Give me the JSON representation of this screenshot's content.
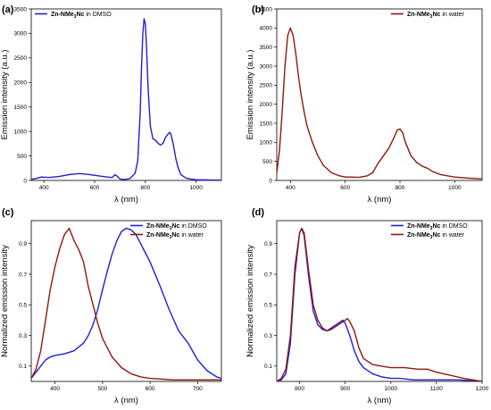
{
  "chart_data": [
    {
      "type": "line",
      "panel": "(a)",
      "xlabel": "λ (nm)",
      "ylabel": "Emission intensity (a.u.)",
      "xlim": [
        350,
        1100
      ],
      "ylim": [
        0,
        3500
      ],
      "xticks": [
        400,
        600,
        800,
        1000
      ],
      "yticks": [
        0,
        500,
        1000,
        1500,
        2000,
        2500,
        3000,
        3500
      ],
      "legend_position": "top-left",
      "series": [
        {
          "name": "Zn-NMe3Nc in DMSO",
          "name_prefix": "Zn-NMe",
          "name_sub": "3",
          "name_suffix": "Nc",
          "name_tail": "in DMSO",
          "color": "#1f1fd6",
          "x": [
            350,
            370,
            390,
            420,
            460,
            500,
            540,
            580,
            620,
            650,
            670,
            680,
            690,
            700,
            720,
            740,
            760,
            770,
            780,
            785,
            790,
            795,
            800,
            805,
            810,
            815,
            820,
            830,
            840,
            850,
            860,
            870,
            880,
            890,
            895,
            900,
            910,
            920,
            930,
            940,
            960,
            980,
            1000,
            1050,
            1100
          ],
          "y": [
            20,
            40,
            70,
            60,
            80,
            120,
            140,
            120,
            90,
            70,
            60,
            120,
            80,
            30,
            20,
            40,
            150,
            400,
            1400,
            2300,
            3000,
            3300,
            3200,
            2700,
            2000,
            1500,
            1100,
            850,
            820,
            760,
            720,
            760,
            880,
            950,
            980,
            960,
            750,
            450,
            250,
            120,
            50,
            25,
            15,
            10,
            5
          ]
        }
      ]
    },
    {
      "type": "line",
      "panel": "(b)",
      "xlabel": "λ (nm)",
      "ylabel": "Emission intensity (a.u.)",
      "xlim": [
        350,
        1100
      ],
      "ylim": [
        0,
        4500
      ],
      "xticks": [
        400,
        600,
        800,
        1000
      ],
      "yticks": [
        0,
        500,
        1000,
        1500,
        2000,
        2500,
        3000,
        3500,
        4000,
        4500
      ],
      "legend_position": "top-right",
      "series": [
        {
          "name": "Zn-NMe3Nc in water",
          "name_prefix": "Zn-NMe",
          "name_sub": "3",
          "name_suffix": "Nc",
          "name_tail": "in water",
          "color": "#8b1a10",
          "x": [
            350,
            360,
            370,
            380,
            390,
            400,
            410,
            420,
            430,
            440,
            450,
            460,
            480,
            500,
            520,
            550,
            580,
            600,
            620,
            650,
            680,
            700,
            720,
            740,
            760,
            780,
            790,
            800,
            810,
            820,
            840,
            860,
            880,
            900,
            920,
            950,
            1000,
            1050,
            1100
          ],
          "y": [
            200,
            800,
            1800,
            3000,
            3800,
            4000,
            3800,
            3300,
            2700,
            2200,
            1800,
            1450,
            1000,
            650,
            400,
            200,
            120,
            90,
            90,
            80,
            120,
            200,
            450,
            650,
            850,
            1150,
            1320,
            1350,
            1250,
            1000,
            650,
            480,
            380,
            320,
            230,
            150,
            90,
            60,
            40
          ]
        }
      ]
    },
    {
      "type": "line",
      "panel": "(c)",
      "xlabel": "λ (nm)",
      "ylabel": "Normalized emission intensity",
      "xlim": [
        350,
        750
      ],
      "ylim": [
        0,
        1.05
      ],
      "xticks": [
        400,
        500,
        600,
        700
      ],
      "yticks": [
        0.1,
        0.3,
        0.5,
        0.7,
        0.9
      ],
      "legend_position": "top-right",
      "series": [
        {
          "name": "Zn-NMe3Nc in DMSO",
          "name_prefix": "Zn-NMe",
          "name_sub": "3",
          "name_suffix": "Nc",
          "name_tail": "in DMSO",
          "color": "#1f1fd6",
          "x": [
            350,
            360,
            370,
            380,
            390,
            400,
            420,
            440,
            460,
            470,
            480,
            490,
            500,
            510,
            520,
            530,
            540,
            550,
            560,
            570,
            580,
            590,
            600,
            620,
            640,
            660,
            680,
            700,
            720,
            740,
            750
          ],
          "y": [
            0.02,
            0.06,
            0.1,
            0.14,
            0.16,
            0.17,
            0.18,
            0.2,
            0.25,
            0.3,
            0.37,
            0.47,
            0.6,
            0.72,
            0.83,
            0.92,
            0.98,
            1.0,
            0.99,
            0.96,
            0.9,
            0.84,
            0.78,
            0.63,
            0.47,
            0.33,
            0.25,
            0.14,
            0.07,
            0.03,
            0.02
          ]
        },
        {
          "name": "Zn-NMe3Nc in water",
          "name_prefix": "Zn-NMe",
          "name_sub": "3",
          "name_suffix": "Nc",
          "name_tail": "in water",
          "color": "#8b1a10",
          "x": [
            350,
            360,
            370,
            380,
            390,
            400,
            410,
            420,
            430,
            440,
            450,
            460,
            470,
            480,
            490,
            500,
            520,
            540,
            560,
            580,
            600,
            650,
            700,
            750
          ],
          "y": [
            0.02,
            0.08,
            0.2,
            0.4,
            0.6,
            0.75,
            0.87,
            0.96,
            1.0,
            0.92,
            0.86,
            0.78,
            0.62,
            0.5,
            0.38,
            0.28,
            0.16,
            0.09,
            0.05,
            0.03,
            0.02,
            0.01,
            0.01,
            0.01
          ]
        }
      ]
    },
    {
      "type": "line",
      "panel": "(d)",
      "xlabel": "λ (nm)",
      "ylabel": "Normalized emission intensity",
      "xlim": [
        750,
        1200
      ],
      "ylim": [
        0,
        1.05
      ],
      "xticks": [
        800,
        900,
        1000,
        1100,
        1200
      ],
      "yticks": [
        0.1,
        0.3,
        0.5,
        0.7,
        0.9
      ],
      "legend_position": "top-right",
      "series": [
        {
          "name": "Zn-NMe3Nc in DMSO",
          "name_prefix": "Zn-NMe",
          "name_sub": "3",
          "name_suffix": "Nc",
          "name_tail": "in DMSO",
          "color": "#1f1fd6",
          "x": [
            750,
            760,
            770,
            780,
            790,
            800,
            805,
            810,
            820,
            830,
            840,
            850,
            860,
            870,
            880,
            890,
            895,
            900,
            910,
            920,
            930,
            940,
            960,
            980,
            1000,
            1020,
            1050,
            1100,
            1150,
            1200
          ],
          "y": [
            0.0,
            0.01,
            0.05,
            0.25,
            0.7,
            0.97,
            1.0,
            0.95,
            0.68,
            0.46,
            0.37,
            0.34,
            0.33,
            0.35,
            0.37,
            0.39,
            0.4,
            0.38,
            0.3,
            0.2,
            0.13,
            0.09,
            0.05,
            0.03,
            0.02,
            0.02,
            0.01,
            0.01,
            0.01,
            0.0
          ]
        },
        {
          "name": "Zn-NMe3Nc in water",
          "name_prefix": "Zn-NMe",
          "name_sub": "3",
          "name_suffix": "Nc",
          "name_tail": "in water",
          "color": "#8b1a10",
          "x": [
            750,
            760,
            770,
            780,
            790,
            800,
            805,
            810,
            820,
            830,
            840,
            850,
            860,
            870,
            880,
            890,
            900,
            905,
            910,
            920,
            930,
            940,
            960,
            980,
            1000,
            1030,
            1060,
            1080,
            1100,
            1130,
            1160,
            1180,
            1200
          ],
          "y": [
            0.0,
            0.02,
            0.08,
            0.3,
            0.75,
            0.97,
            1.0,
            0.97,
            0.72,
            0.5,
            0.4,
            0.35,
            0.33,
            0.34,
            0.36,
            0.38,
            0.4,
            0.41,
            0.39,
            0.33,
            0.22,
            0.15,
            0.11,
            0.1,
            0.09,
            0.09,
            0.08,
            0.08,
            0.06,
            0.04,
            0.02,
            0.01,
            0.0
          ]
        }
      ]
    }
  ]
}
